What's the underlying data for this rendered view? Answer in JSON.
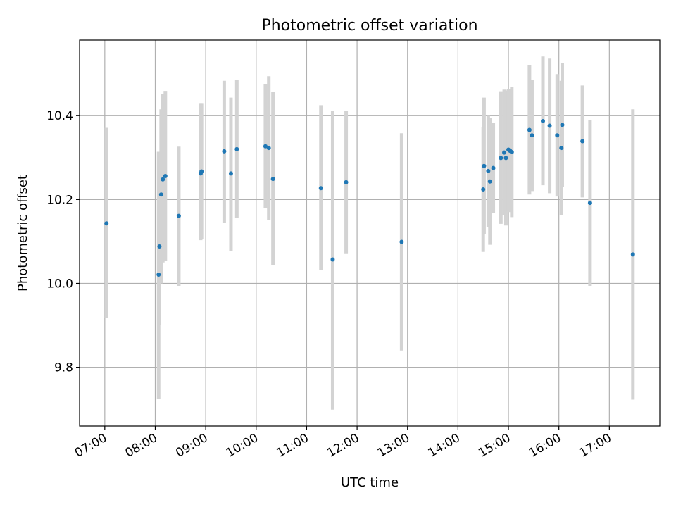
{
  "chart_data": {
    "type": "scatter",
    "title": "Photometric offset variation",
    "xlabel": "UTC time",
    "ylabel": "Photometric offset",
    "x_axis_type": "time",
    "xlim": [
      "06:30",
      "18:00"
    ],
    "ylim": [
      9.66,
      10.58
    ],
    "x_ticks": [
      "07:00",
      "08:00",
      "09:00",
      "10:00",
      "11:00",
      "12:00",
      "13:00",
      "14:00",
      "15:00",
      "16:00",
      "17:00"
    ],
    "y_ticks": [
      9.8,
      10.0,
      10.2,
      10.4
    ],
    "y_tick_labels": [
      "9.8",
      "10.0",
      "10.2",
      "10.4"
    ],
    "grid": true,
    "marker_color": "#1f77b4",
    "errorbar_color": "#d3d3d3",
    "points": [
      {
        "t": "07:02",
        "y": 10.143,
        "lo": 9.917,
        "hi": 10.371
      },
      {
        "t": "08:04",
        "y": 10.021,
        "lo": 9.724,
        "hi": 10.314
      },
      {
        "t": "08:05",
        "y": 10.088,
        "lo": 9.901,
        "hi": 10.276
      },
      {
        "t": "08:07",
        "y": 10.212,
        "lo": 10.0,
        "hi": 10.415
      },
      {
        "t": "08:09",
        "y": 10.248,
        "lo": 10.05,
        "hi": 10.452
      },
      {
        "t": "08:12",
        "y": 10.256,
        "lo": 10.054,
        "hi": 10.459
      },
      {
        "t": "08:28",
        "y": 10.161,
        "lo": 9.994,
        "hi": 10.326
      },
      {
        "t": "08:54",
        "y": 10.262,
        "lo": 10.103,
        "hi": 10.43
      },
      {
        "t": "08:55",
        "y": 10.267,
        "lo": 10.105,
        "hi": 10.43
      },
      {
        "t": "09:22",
        "y": 10.315,
        "lo": 10.145,
        "hi": 10.483
      },
      {
        "t": "09:30",
        "y": 10.262,
        "lo": 10.078,
        "hi": 10.443
      },
      {
        "t": "09:37",
        "y": 10.32,
        "lo": 10.156,
        "hi": 10.486
      },
      {
        "t": "10:11",
        "y": 10.327,
        "lo": 10.18,
        "hi": 10.475
      },
      {
        "t": "10:15",
        "y": 10.323,
        "lo": 10.151,
        "hi": 10.494
      },
      {
        "t": "10:20",
        "y": 10.249,
        "lo": 10.043,
        "hi": 10.456
      },
      {
        "t": "11:17",
        "y": 10.227,
        "lo": 10.031,
        "hi": 10.425
      },
      {
        "t": "11:31",
        "y": 10.057,
        "lo": 9.699,
        "hi": 10.412
      },
      {
        "t": "11:47",
        "y": 10.241,
        "lo": 10.07,
        "hi": 10.412
      },
      {
        "t": "12:53",
        "y": 10.099,
        "lo": 9.84,
        "hi": 10.358
      },
      {
        "t": "14:30",
        "y": 10.224,
        "lo": 10.075,
        "hi": 10.372
      },
      {
        "t": "14:31",
        "y": 10.28,
        "lo": 10.118,
        "hi": 10.443
      },
      {
        "t": "14:36",
        "y": 10.268,
        "lo": 10.135,
        "hi": 10.4
      },
      {
        "t": "14:38",
        "y": 10.243,
        "lo": 10.092,
        "hi": 10.394
      },
      {
        "t": "14:42",
        "y": 10.275,
        "lo": 10.168,
        "hi": 10.382
      },
      {
        "t": "14:51",
        "y": 10.299,
        "lo": 10.142,
        "hi": 10.458
      },
      {
        "t": "14:55",
        "y": 10.312,
        "lo": 10.162,
        "hi": 10.462
      },
      {
        "t": "14:57",
        "y": 10.299,
        "lo": 10.138,
        "hi": 10.46
      },
      {
        "t": "15:00",
        "y": 10.319,
        "lo": 10.173,
        "hi": 10.464
      },
      {
        "t": "15:02",
        "y": 10.316,
        "lo": 10.17,
        "hi": 10.462
      },
      {
        "t": "15:04",
        "y": 10.313,
        "lo": 10.158,
        "hi": 10.468
      },
      {
        "t": "15:25",
        "y": 10.366,
        "lo": 10.212,
        "hi": 10.52
      },
      {
        "t": "15:28",
        "y": 10.353,
        "lo": 10.22,
        "hi": 10.486
      },
      {
        "t": "15:41",
        "y": 10.387,
        "lo": 10.234,
        "hi": 10.541
      },
      {
        "t": "15:49",
        "y": 10.376,
        "lo": 10.215,
        "hi": 10.536
      },
      {
        "t": "15:58",
        "y": 10.353,
        "lo": 10.207,
        "hi": 10.499
      },
      {
        "t": "16:03",
        "y": 10.323,
        "lo": 10.163,
        "hi": 10.483
      },
      {
        "t": "16:04",
        "y": 10.378,
        "lo": 10.23,
        "hi": 10.525
      },
      {
        "t": "16:28",
        "y": 10.339,
        "lo": 10.205,
        "hi": 10.472
      },
      {
        "t": "16:37",
        "y": 10.192,
        "lo": 9.994,
        "hi": 10.389
      },
      {
        "t": "17:28",
        "y": 10.069,
        "lo": 9.723,
        "hi": 10.415
      }
    ]
  }
}
